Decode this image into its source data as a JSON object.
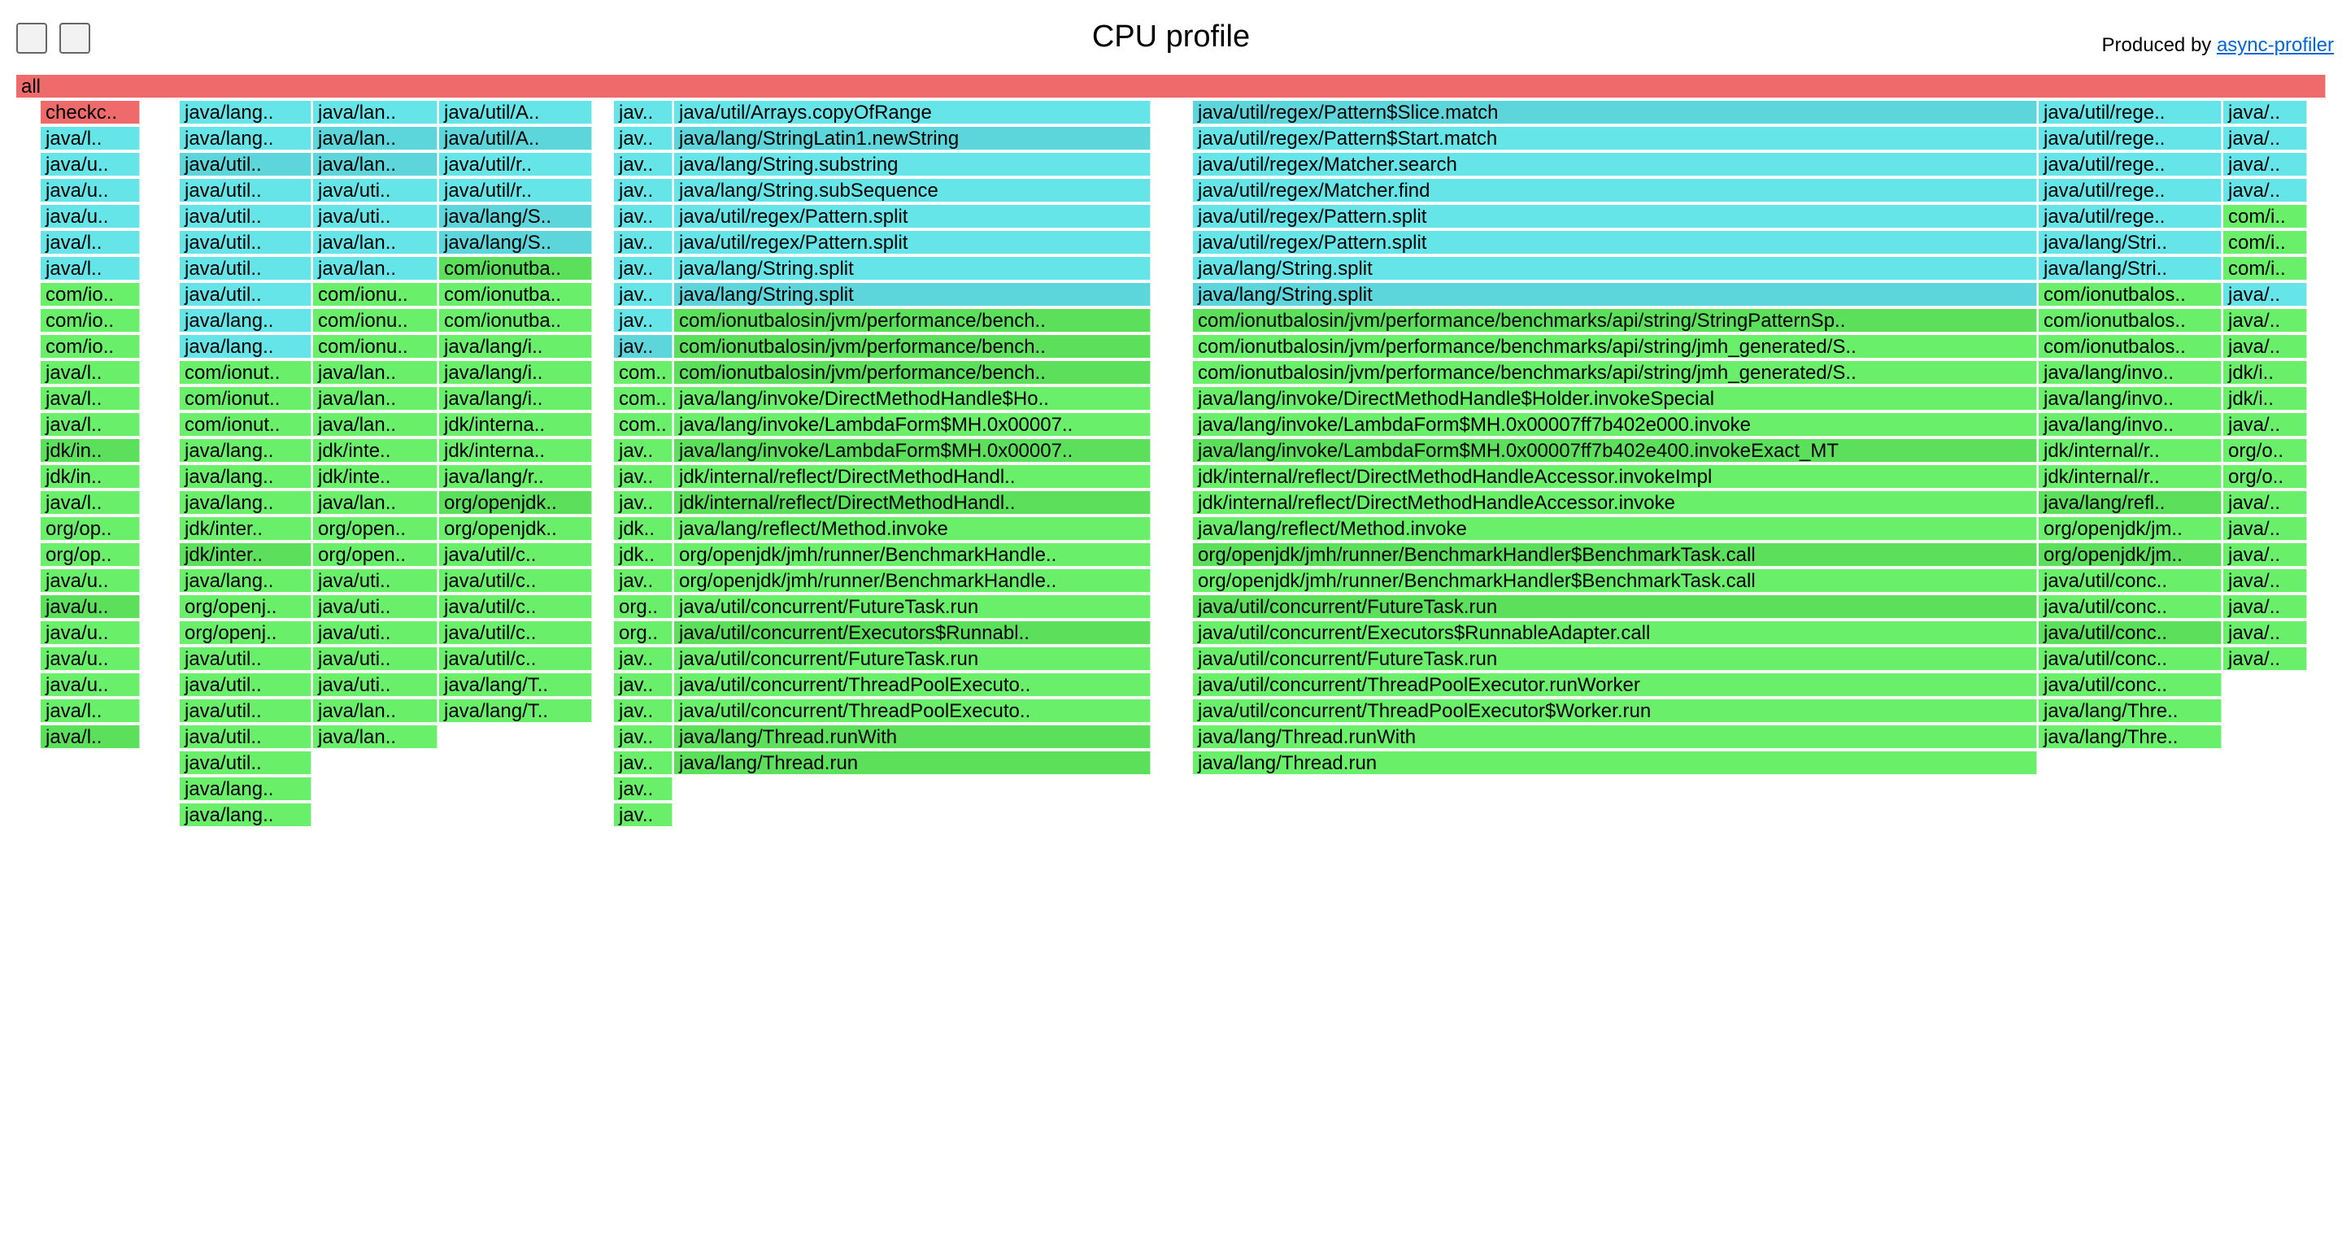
{
  "toolbar": {
    "reverse_button": "",
    "search_button": ""
  },
  "header": {
    "title": "CPU profile",
    "produced_prefix": "Produced by ",
    "produced_link": "async-profiler"
  },
  "palette": {
    "cyan": "#66e5e8",
    "cyan2": "#5cd5db",
    "green": "#69ef69",
    "green2": "#5ce05c",
    "red": "#ef6b6b",
    "yellow": "#e3d95e"
  },
  "frames": [
    {
      "c": "red",
      "label": "all"
    },
    {
      "c": "red",
      "label": "checkc.."
    },
    {
      "c": "cyan",
      "label": "java/lang.."
    },
    {
      "c": "cyan",
      "label": "java/lan.."
    },
    {
      "c": "cyan",
      "label": "java/util/A.."
    },
    {
      "c": "cyan",
      "label": "jav.."
    },
    {
      "c": "cyan",
      "label": "java/util/Arrays.copyOfRange"
    },
    {
      "c": "cyan2",
      "label": "java/util/regex/Pattern$Slice.match"
    },
    {
      "c": "cyan",
      "label": "java/util/rege.."
    },
    {
      "c": "cyan",
      "label": "java/.."
    },
    {
      "c": "cyan",
      "label": "java/l.."
    },
    {
      "c": "cyan",
      "label": "java/lang.."
    },
    {
      "c": "cyan2",
      "label": "java/lan.."
    },
    {
      "c": "cyan2",
      "label": "java/util/A.."
    },
    {
      "c": "cyan",
      "label": "jav.."
    },
    {
      "c": "cyan2",
      "label": "java/lang/StringLatin1.newString"
    },
    {
      "c": "cyan",
      "label": "java/util/regex/Pattern$Start.match"
    },
    {
      "c": "cyan",
      "label": "java/util/rege.."
    },
    {
      "c": "cyan",
      "label": "java/.."
    },
    {
      "c": "cyan",
      "label": "java/u.."
    },
    {
      "c": "cyan2",
      "label": "java/util.."
    },
    {
      "c": "cyan2",
      "label": "java/lan.."
    },
    {
      "c": "cyan",
      "label": "java/util/r.."
    },
    {
      "c": "cyan",
      "label": "jav.."
    },
    {
      "c": "cyan",
      "label": "java/lang/String.substring"
    },
    {
      "c": "cyan",
      "label": "java/util/regex/Matcher.search"
    },
    {
      "c": "cyan",
      "label": "java/util/rege.."
    },
    {
      "c": "cyan",
      "label": "java/.."
    },
    {
      "c": "cyan",
      "label": "java/u.."
    },
    {
      "c": "cyan",
      "label": "java/util.."
    },
    {
      "c": "cyan",
      "label": "java/uti.."
    },
    {
      "c": "cyan",
      "label": "java/util/r.."
    },
    {
      "c": "cyan",
      "label": "jav.."
    },
    {
      "c": "cyan",
      "label": "java/lang/String.subSequence"
    },
    {
      "c": "cyan",
      "label": "java/util/regex/Matcher.find"
    },
    {
      "c": "cyan",
      "label": "java/util/rege.."
    },
    {
      "c": "cyan",
      "label": "java/.."
    },
    {
      "c": "cyan",
      "label": "java/u.."
    },
    {
      "c": "cyan",
      "label": "java/util.."
    },
    {
      "c": "cyan",
      "label": "java/uti.."
    },
    {
      "c": "cyan2",
      "label": "java/lang/S.."
    },
    {
      "c": "cyan",
      "label": "jav.."
    },
    {
      "c": "cyan",
      "label": "java/util/regex/Pattern.split"
    },
    {
      "c": "cyan",
      "label": "java/util/regex/Pattern.split"
    },
    {
      "c": "cyan",
      "label": "java/util/rege.."
    },
    {
      "c": "green",
      "label": "com/i.."
    },
    {
      "c": "cyan",
      "label": "java/l.."
    },
    {
      "c": "cyan",
      "label": "java/util.."
    },
    {
      "c": "cyan",
      "label": "java/lan.."
    },
    {
      "c": "cyan2",
      "label": "java/lang/S.."
    },
    {
      "c": "cyan",
      "label": "jav.."
    },
    {
      "c": "cyan",
      "label": "java/util/regex/Pattern.split"
    },
    {
      "c": "cyan",
      "label": "java/util/regex/Pattern.split"
    },
    {
      "c": "cyan",
      "label": "java/lang/Stri.."
    },
    {
      "c": "green",
      "label": "com/i.."
    },
    {
      "c": "cyan",
      "label": "java/l.."
    },
    {
      "c": "cyan",
      "label": "java/util.."
    },
    {
      "c": "cyan",
      "label": "java/lan.."
    },
    {
      "c": "green2",
      "label": "com/ionutba.."
    },
    {
      "c": "cyan",
      "label": "jav.."
    },
    {
      "c": "cyan",
      "label": "java/lang/String.split"
    },
    {
      "c": "cyan",
      "label": "java/lang/String.split"
    },
    {
      "c": "cyan",
      "label": "java/lang/Stri.."
    },
    {
      "c": "green",
      "label": "com/i.."
    },
    {
      "c": "green",
      "label": "com/io.."
    },
    {
      "c": "cyan",
      "label": "java/util.."
    },
    {
      "c": "green",
      "label": "com/ionu.."
    },
    {
      "c": "green",
      "label": "com/ionutba.."
    },
    {
      "c": "cyan",
      "label": "jav.."
    },
    {
      "c": "cyan2",
      "label": "java/lang/String.split"
    },
    {
      "c": "cyan2",
      "label": "java/lang/String.split"
    },
    {
      "c": "green",
      "label": "com/ionutbalos.."
    },
    {
      "c": "cyan",
      "label": "java/.."
    },
    {
      "c": "green",
      "label": "com/io.."
    },
    {
      "c": "cyan",
      "label": "java/lang.."
    },
    {
      "c": "green",
      "label": "com/ionu.."
    },
    {
      "c": "green",
      "label": "com/ionutba.."
    },
    {
      "c": "cyan",
      "label": "jav.."
    },
    {
      "c": "green2",
      "label": "com/ionutbalosin/jvm/performance/bench.."
    },
    {
      "c": "green2",
      "label": "com/ionutbalosin/jvm/performance/benchmarks/api/string/StringPatternSp.."
    },
    {
      "c": "green",
      "label": "com/ionutbalos.."
    },
    {
      "c": "green",
      "label": "java/.."
    },
    {
      "c": "green",
      "label": "com/io.."
    },
    {
      "c": "cyan",
      "label": "java/lang.."
    },
    {
      "c": "green",
      "label": "com/ionu.."
    },
    {
      "c": "green",
      "label": "java/lang/i.."
    },
    {
      "c": "cyan2",
      "label": "jav.."
    },
    {
      "c": "green2",
      "label": "com/ionutbalosin/jvm/performance/bench.."
    },
    {
      "c": "green",
      "label": "com/ionutbalosin/jvm/performance/benchmarks/api/string/jmh_generated/S.."
    },
    {
      "c": "green",
      "label": "com/ionutbalos.."
    },
    {
      "c": "green",
      "label": "java/.."
    },
    {
      "c": "green",
      "label": "java/l.."
    },
    {
      "c": "green",
      "label": "com/ionut.."
    },
    {
      "c": "green",
      "label": "java/lan.."
    },
    {
      "c": "green",
      "label": "java/lang/i.."
    },
    {
      "c": "green",
      "label": "com.."
    },
    {
      "c": "green2",
      "label": "com/ionutbalosin/jvm/performance/bench.."
    },
    {
      "c": "green",
      "label": "com/ionutbalosin/jvm/performance/benchmarks/api/string/jmh_generated/S.."
    },
    {
      "c": "green",
      "label": "java/lang/invo.."
    },
    {
      "c": "green",
      "label": "jdk/i.."
    },
    {
      "c": "green",
      "label": "java/l.."
    },
    {
      "c": "green",
      "label": "com/ionut.."
    },
    {
      "c": "green",
      "label": "java/lan.."
    },
    {
      "c": "green",
      "label": "java/lang/i.."
    },
    {
      "c": "green",
      "label": "com.."
    },
    {
      "c": "green",
      "label": "java/lang/invoke/DirectMethodHandle$Ho.."
    },
    {
      "c": "green",
      "label": "java/lang/invoke/DirectMethodHandle$Holder.invokeSpecial"
    },
    {
      "c": "green",
      "label": "java/lang/invo.."
    },
    {
      "c": "green",
      "label": "jdk/i.."
    },
    {
      "c": "green",
      "label": "java/l.."
    },
    {
      "c": "green",
      "label": "com/ionut.."
    },
    {
      "c": "green",
      "label": "java/lan.."
    },
    {
      "c": "green",
      "label": "jdk/interna.."
    },
    {
      "c": "green",
      "label": "com.."
    },
    {
      "c": "green",
      "label": "java/lang/invoke/LambdaForm$MH.0x00007.."
    },
    {
      "c": "green",
      "label": "java/lang/invoke/LambdaForm$MH.0x00007ff7b402e000.invoke"
    },
    {
      "c": "green",
      "label": "java/lang/invo.."
    },
    {
      "c": "green",
      "label": "java/.."
    },
    {
      "c": "green2",
      "label": "jdk/in.."
    },
    {
      "c": "green",
      "label": "java/lang.."
    },
    {
      "c": "green",
      "label": "jdk/inte.."
    },
    {
      "c": "green",
      "label": "jdk/interna.."
    },
    {
      "c": "green",
      "label": "jav.."
    },
    {
      "c": "green2",
      "label": "java/lang/invoke/LambdaForm$MH.0x00007.."
    },
    {
      "c": "green2",
      "label": "java/lang/invoke/LambdaForm$MH.0x00007ff7b402e400.invokeExact_MT"
    },
    {
      "c": "green",
      "label": "jdk/internal/r.."
    },
    {
      "c": "green",
      "label": "org/o.."
    },
    {
      "c": "green",
      "label": "jdk/in.."
    },
    {
      "c": "green",
      "label": "java/lang.."
    },
    {
      "c": "green",
      "label": "jdk/inte.."
    },
    {
      "c": "green",
      "label": "java/lang/r.."
    },
    {
      "c": "green",
      "label": "jav.."
    },
    {
      "c": "green",
      "label": "jdk/internal/reflect/DirectMethodHandl.."
    },
    {
      "c": "green",
      "label": "jdk/internal/reflect/DirectMethodHandleAccessor.invokeImpl"
    },
    {
      "c": "green",
      "label": "jdk/internal/r.."
    },
    {
      "c": "green",
      "label": "org/o.."
    },
    {
      "c": "green",
      "label": "java/l.."
    },
    {
      "c": "green",
      "label": "java/lang.."
    },
    {
      "c": "green",
      "label": "java/lan.."
    },
    {
      "c": "green2",
      "label": "org/openjdk.."
    },
    {
      "c": "green",
      "label": "jav.."
    },
    {
      "c": "green2",
      "label": "jdk/internal/reflect/DirectMethodHandl.."
    },
    {
      "c": "green",
      "label": "jdk/internal/reflect/DirectMethodHandleAccessor.invoke"
    },
    {
      "c": "green2",
      "label": "java/lang/refl.."
    },
    {
      "c": "green",
      "label": "java/.."
    },
    {
      "c": "green",
      "label": "org/op.."
    },
    {
      "c": "green",
      "label": "jdk/inter.."
    },
    {
      "c": "green",
      "label": "org/open.."
    },
    {
      "c": "green",
      "label": "org/openjdk.."
    },
    {
      "c": "green",
      "label": "jdk.."
    },
    {
      "c": "green",
      "label": "java/lang/reflect/Method.invoke"
    },
    {
      "c": "green",
      "label": "java/lang/reflect/Method.invoke"
    },
    {
      "c": "green",
      "label": "org/openjdk/jm.."
    },
    {
      "c": "green",
      "label": "java/.."
    },
    {
      "c": "green",
      "label": "org/op.."
    },
    {
      "c": "green2",
      "label": "jdk/inter.."
    },
    {
      "c": "green",
      "label": "org/open.."
    },
    {
      "c": "green",
      "label": "java/util/c.."
    },
    {
      "c": "green",
      "label": "jdk.."
    },
    {
      "c": "green",
      "label": "org/openjdk/jmh/runner/BenchmarkHandle.."
    },
    {
      "c": "green2",
      "label": "org/openjdk/jmh/runner/BenchmarkHandler$BenchmarkTask.call"
    },
    {
      "c": "green2",
      "label": "org/openjdk/jm.."
    },
    {
      "c": "green",
      "label": "java/.."
    },
    {
      "c": "green",
      "label": "java/u.."
    },
    {
      "c": "green",
      "label": "java/lang.."
    },
    {
      "c": "green",
      "label": "java/uti.."
    },
    {
      "c": "green",
      "label": "java/util/c.."
    },
    {
      "c": "green",
      "label": "jav.."
    },
    {
      "c": "green",
      "label": "org/openjdk/jmh/runner/BenchmarkHandle.."
    },
    {
      "c": "green",
      "label": "org/openjdk/jmh/runner/BenchmarkHandler$BenchmarkTask.call"
    },
    {
      "c": "green",
      "label": "java/util/conc.."
    },
    {
      "c": "green",
      "label": "java/.."
    },
    {
      "c": "green2",
      "label": "java/u.."
    },
    {
      "c": "green",
      "label": "org/openj.."
    },
    {
      "c": "green",
      "label": "java/uti.."
    },
    {
      "c": "green",
      "label": "java/util/c.."
    },
    {
      "c": "green",
      "label": "org.."
    },
    {
      "c": "green",
      "label": "java/util/concurrent/FutureTask.run"
    },
    {
      "c": "green2",
      "label": "java/util/concurrent/FutureTask.run"
    },
    {
      "c": "green",
      "label": "java/util/conc.."
    },
    {
      "c": "green",
      "label": "java/.."
    },
    {
      "c": "green",
      "label": "java/u.."
    },
    {
      "c": "green",
      "label": "org/openj.."
    },
    {
      "c": "green",
      "label": "java/uti.."
    },
    {
      "c": "green",
      "label": "java/util/c.."
    },
    {
      "c": "green",
      "label": "org.."
    },
    {
      "c": "green2",
      "label": "java/util/concurrent/Executors$Runnabl.."
    },
    {
      "c": "green",
      "label": "java/util/concurrent/Executors$RunnableAdapter.call"
    },
    {
      "c": "green2",
      "label": "java/util/conc.."
    },
    {
      "c": "green",
      "label": "java/.."
    },
    {
      "c": "green",
      "label": "java/u.."
    },
    {
      "c": "green",
      "label": "java/util.."
    },
    {
      "c": "green",
      "label": "java/uti.."
    },
    {
      "c": "green",
      "label": "java/util/c.."
    },
    {
      "c": "green",
      "label": "jav.."
    },
    {
      "c": "green",
      "label": "java/util/concurrent/FutureTask.run"
    },
    {
      "c": "green",
      "label": "java/util/concurrent/FutureTask.run"
    },
    {
      "c": "green",
      "label": "java/util/conc.."
    },
    {
      "c": "green",
      "label": "java/.."
    },
    {
      "c": "green",
      "label": "java/u.."
    },
    {
      "c": "green",
      "label": "java/util.."
    },
    {
      "c": "green",
      "label": "java/uti.."
    },
    {
      "c": "green",
      "label": "java/lang/T.."
    },
    {
      "c": "green",
      "label": "jav.."
    },
    {
      "c": "green",
      "label": "java/util/concurrent/ThreadPoolExecuto.."
    },
    {
      "c": "green",
      "label": "java/util/concurrent/ThreadPoolExecutor.runWorker"
    },
    {
      "c": "green",
      "label": "java/util/conc.."
    },
    {
      "c": "green",
      "label": "java/l.."
    },
    {
      "c": "green",
      "label": "java/util.."
    },
    {
      "c": "green",
      "label": "java/lan.."
    },
    {
      "c": "green",
      "label": "java/lang/T.."
    },
    {
      "c": "green",
      "label": "jav.."
    },
    {
      "c": "green",
      "label": "java/util/concurrent/ThreadPoolExecuto.."
    },
    {
      "c": "green",
      "label": "java/util/concurrent/ThreadPoolExecutor$Worker.run"
    },
    {
      "c": "green",
      "label": "java/lang/Thre.."
    },
    {
      "c": "green2",
      "label": "java/l.."
    },
    {
      "c": "green",
      "label": "java/util.."
    },
    {
      "c": "green",
      "label": "java/lan.."
    },
    {
      "c": "green",
      "label": "jav.."
    },
    {
      "c": "green2",
      "label": "java/lang/Thread.runWith"
    },
    {
      "c": "green",
      "label": "java/lang/Thread.runWith"
    },
    {
      "c": "green",
      "label": "java/lang/Thre.."
    },
    {
      "c": "green",
      "label": "java/util.."
    },
    {
      "c": "green",
      "label": "jav.."
    },
    {
      "c": "green2",
      "label": "java/lang/Thread.run"
    },
    {
      "c": "green",
      "label": "java/lang/Thread.run"
    },
    {
      "c": "green",
      "label": "java/lang.."
    },
    {
      "c": "green",
      "label": "jav.."
    },
    {
      "c": "green",
      "label": "java/lang.."
    },
    {
      "c": "green",
      "label": "jav.."
    }
  ]
}
